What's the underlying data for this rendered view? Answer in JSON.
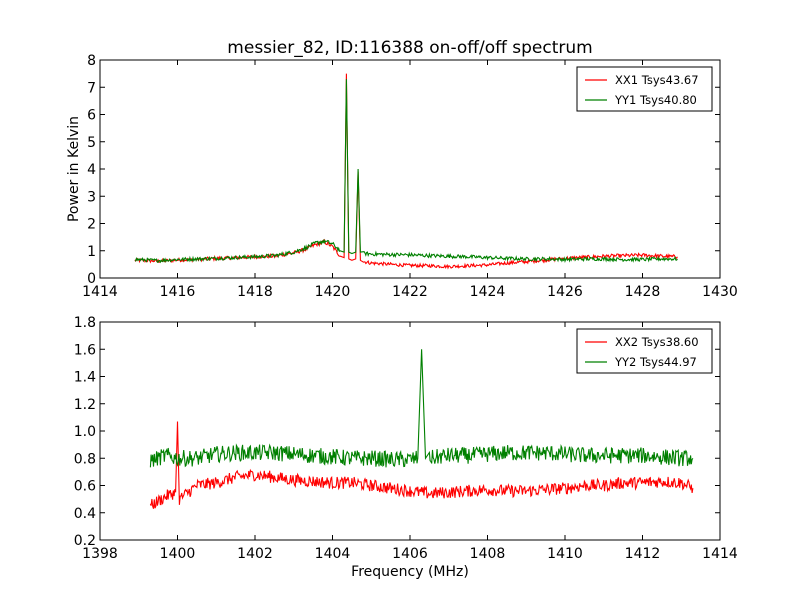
{
  "chart_data": [
    {
      "type": "line",
      "title": "messier_82, ID:116388 on-off/off spectrum",
      "xlabel": "",
      "ylabel": "Power in Kelvin",
      "xlim": [
        1414,
        1430
      ],
      "ylim": [
        0,
        8
      ],
      "x_ticks": [
        1414,
        1416,
        1418,
        1420,
        1422,
        1424,
        1426,
        1428,
        1430
      ],
      "y_ticks": [
        0,
        1,
        2,
        3,
        4,
        5,
        6,
        7,
        8
      ],
      "grid": false,
      "legend_position": "top-right",
      "series": [
        {
          "name": "XX1 Tsys43.67",
          "color": "#ff0000",
          "x": [
            1414.9,
            1415.5,
            1416.0,
            1416.5,
            1417.0,
            1417.5,
            1418.0,
            1418.5,
            1419.0,
            1419.3,
            1419.6,
            1419.8,
            1420.0,
            1420.2,
            1420.3,
            1420.36,
            1420.42,
            1420.5,
            1420.6,
            1420.66,
            1420.72,
            1420.8,
            1421.0,
            1421.5,
            1422.0,
            1422.5,
            1423.0,
            1423.5,
            1424.0,
            1424.5,
            1425.0,
            1425.5,
            1426.0,
            1426.5,
            1427.0,
            1427.5,
            1428.0,
            1428.5,
            1428.9
          ],
          "y": [
            0.65,
            0.62,
            0.66,
            0.68,
            0.72,
            0.74,
            0.78,
            0.8,
            0.92,
            1.05,
            1.25,
            1.32,
            1.15,
            0.8,
            0.75,
            7.5,
            0.7,
            0.65,
            0.7,
            3.9,
            0.65,
            0.6,
            0.55,
            0.5,
            0.46,
            0.45,
            0.42,
            0.45,
            0.48,
            0.55,
            0.6,
            0.66,
            0.72,
            0.76,
            0.8,
            0.82,
            0.84,
            0.8,
            0.78
          ]
        },
        {
          "name": "YY1 Tsys40.80",
          "color": "#008000",
          "x": [
            1414.9,
            1415.5,
            1416.0,
            1416.5,
            1417.0,
            1417.5,
            1418.0,
            1418.5,
            1419.0,
            1419.3,
            1419.6,
            1419.8,
            1420.0,
            1420.2,
            1420.3,
            1420.36,
            1420.42,
            1420.5,
            1420.6,
            1420.66,
            1420.72,
            1420.8,
            1421.0,
            1421.5,
            1422.0,
            1422.5,
            1423.0,
            1423.5,
            1424.0,
            1424.5,
            1425.0,
            1425.5,
            1426.0,
            1426.5,
            1427.0,
            1427.5,
            1428.0,
            1428.5,
            1428.9
          ],
          "y": [
            0.68,
            0.64,
            0.68,
            0.7,
            0.72,
            0.75,
            0.78,
            0.82,
            0.95,
            1.1,
            1.3,
            1.35,
            1.25,
            1.0,
            0.95,
            7.3,
            0.95,
            0.9,
            0.95,
            4.0,
            0.95,
            0.9,
            0.88,
            0.86,
            0.85,
            0.82,
            0.8,
            0.78,
            0.75,
            0.72,
            0.7,
            0.7,
            0.68,
            0.7,
            0.7,
            0.68,
            0.68,
            0.7,
            0.7
          ]
        }
      ]
    },
    {
      "type": "line",
      "title": "",
      "xlabel": "Frequency (MHz)",
      "ylabel": "",
      "xlim": [
        1398,
        1414
      ],
      "ylim": [
        0.2,
        1.8
      ],
      "x_ticks": [
        1398,
        1400,
        1402,
        1404,
        1406,
        1408,
        1410,
        1412,
        1414
      ],
      "y_ticks": [
        "0.2",
        "0.4",
        "0.6",
        "0.8",
        "1.0",
        "1.2",
        "1.4",
        "1.6",
        "1.8"
      ],
      "grid": false,
      "legend_position": "top-right",
      "series": [
        {
          "name": "XX2 Tsys38.60",
          "color": "#ff0000",
          "x": [
            1399.3,
            1399.7,
            1399.95,
            1400.0,
            1400.05,
            1400.5,
            1401.0,
            1401.5,
            1402.0,
            1402.5,
            1403.0,
            1403.5,
            1404.0,
            1404.5,
            1405.0,
            1405.5,
            1406.0,
            1406.5,
            1407.0,
            1407.5,
            1408.0,
            1408.5,
            1409.0,
            1409.5,
            1410.0,
            1410.5,
            1411.0,
            1411.5,
            1412.0,
            1412.5,
            1413.0,
            1413.3
          ],
          "y": [
            0.45,
            0.52,
            0.55,
            1.07,
            0.5,
            0.6,
            0.62,
            0.66,
            0.68,
            0.66,
            0.64,
            0.63,
            0.62,
            0.62,
            0.6,
            0.58,
            0.56,
            0.54,
            0.55,
            0.56,
            0.57,
            0.56,
            0.56,
            0.57,
            0.58,
            0.6,
            0.6,
            0.62,
            0.62,
            0.63,
            0.62,
            0.58
          ],
          "noise": 0.045
        },
        {
          "name": "YY2 Tsys44.97",
          "color": "#008000",
          "x": [
            1399.3,
            1399.7,
            1400.0,
            1400.5,
            1401.0,
            1401.5,
            1402.0,
            1402.5,
            1403.0,
            1403.5,
            1404.0,
            1404.5,
            1405.0,
            1405.5,
            1406.0,
            1406.2,
            1406.3,
            1406.4,
            1406.5,
            1407.0,
            1407.5,
            1408.0,
            1408.5,
            1409.0,
            1409.5,
            1410.0,
            1410.5,
            1411.0,
            1411.5,
            1412.0,
            1412.5,
            1413.0,
            1413.3
          ],
          "y": [
            0.78,
            0.82,
            0.8,
            0.8,
            0.83,
            0.84,
            0.84,
            0.84,
            0.83,
            0.82,
            0.81,
            0.8,
            0.8,
            0.79,
            0.79,
            0.8,
            1.6,
            0.8,
            0.8,
            0.82,
            0.82,
            0.83,
            0.84,
            0.84,
            0.84,
            0.83,
            0.82,
            0.82,
            0.82,
            0.82,
            0.81,
            0.8,
            0.8
          ],
          "noise": 0.06
        }
      ]
    }
  ]
}
